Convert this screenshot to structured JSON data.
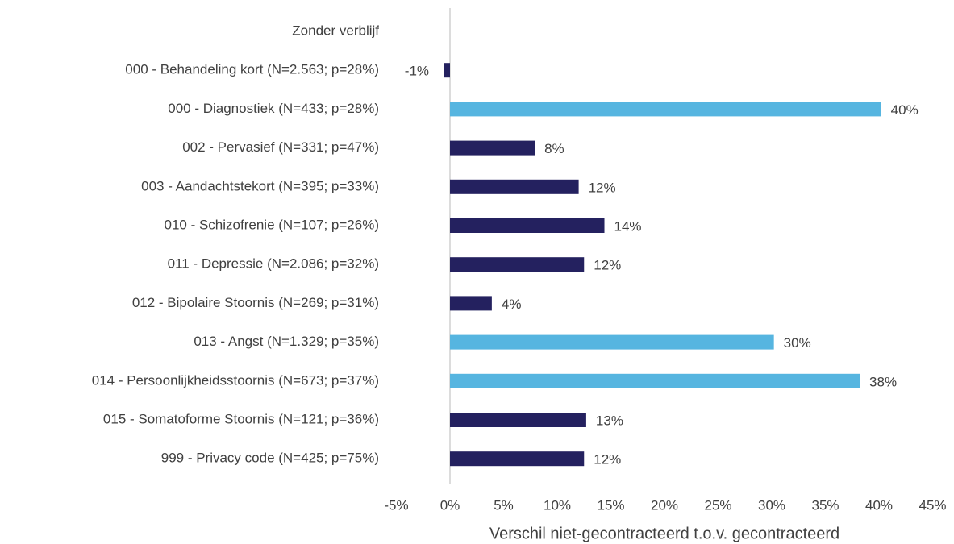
{
  "chart_data": {
    "type": "barh",
    "categories": [
      "Zonder verblijf",
      "000 - Behandeling kort (N=2.563; p=28%)",
      "000 - Diagnostiek (N=433; p=28%)",
      "002 - Pervasief (N=331; p=47%)",
      "003 - Aandachtstekort (N=395; p=33%)",
      "010 - Schizofrenie (N=107; p=26%)",
      "011 - Depressie (N=2.086; p=32%)",
      "012 - Bipolaire Stoornis (N=269; p=31%)",
      "013 - Angst (N=1.329; p=35%)",
      "014 - Persoonlijkheidsstoornis (N=673; p=37%)",
      "015 - Somatoforme Stoornis (N=121; p=36%)",
      "999 - Privacy code (N=425; p=75%)"
    ],
    "values": [
      null,
      -0.6,
      40.2,
      7.9,
      12.0,
      14.4,
      12.5,
      3.9,
      30.2,
      38.2,
      12.7,
      12.5
    ],
    "value_labels": [
      null,
      "-1%",
      "40%",
      "8%",
      "12%",
      "14%",
      "12%",
      "4%",
      "30%",
      "38%",
      "13%",
      "12%"
    ],
    "colors": [
      null,
      "#24215f",
      "#56b5e0",
      "#24215f",
      "#24215f",
      "#24215f",
      "#24215f",
      "#24215f",
      "#56b5e0",
      "#56b5e0",
      "#24215f",
      "#24215f"
    ],
    "xlabel": "Verschil niet-gecontracteerd t.o.v. gecontracteerd",
    "xlim": [
      -5,
      45
    ],
    "xticks": [
      {
        "value": -5,
        "label": "-5%"
      },
      {
        "value": 0,
        "label": "0%"
      },
      {
        "value": 5,
        "label": "5%"
      },
      {
        "value": 10,
        "label": "10%"
      },
      {
        "value": 15,
        "label": "15%"
      },
      {
        "value": 20,
        "label": "20%"
      },
      {
        "value": 25,
        "label": "25%"
      },
      {
        "value": 30,
        "label": "30%"
      },
      {
        "value": 35,
        "label": "35%"
      },
      {
        "value": 40,
        "label": "40%"
      },
      {
        "value": 45,
        "label": "45%"
      }
    ]
  }
}
